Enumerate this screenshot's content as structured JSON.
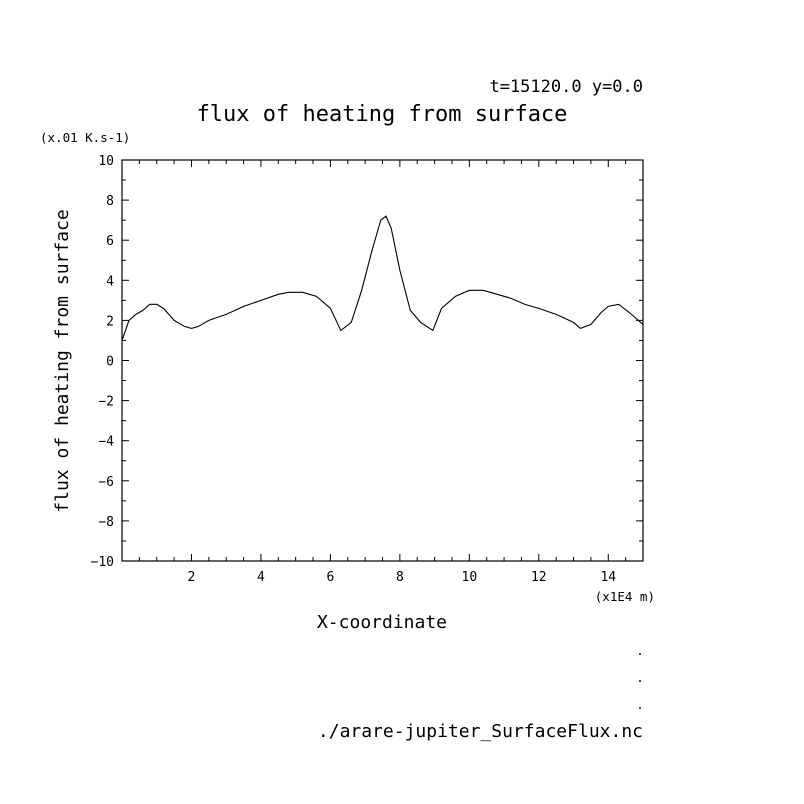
{
  "header": {
    "subtitle": "t=15120.0 y=0.0",
    "title": "flux of heating from surface",
    "y_unit": "(x.01 K.s-1)"
  },
  "footer": {
    "x_unit": "(x1E4 m)",
    "source_file": "./arare-jupiter_SurfaceFlux.nc",
    "dots": [
      ".",
      ".",
      "."
    ]
  },
  "chart_data": {
    "type": "line",
    "title": "flux of heating from surface",
    "subtitle": "t=15120.0 y=0.0",
    "xlabel": "X-coordinate",
    "ylabel": "flux of heating from surface",
    "x_unit": "(x1E4 m)",
    "y_unit": "(x.01 K.s-1)",
    "xlim": [
      0,
      15
    ],
    "ylim": [
      -10,
      10
    ],
    "x_ticks": [
      2,
      4,
      6,
      8,
      10,
      12,
      14
    ],
    "y_ticks": [
      -10,
      -8,
      -6,
      -4,
      -2,
      0,
      2,
      4,
      6,
      8,
      10
    ],
    "grid": false,
    "legend": "none",
    "series": [
      {
        "x": [
          0,
          0.2,
          0.4,
          0.6,
          0.8,
          1.0,
          1.2,
          1.5,
          1.8,
          2.0,
          2.2,
          2.5,
          3.0,
          3.5,
          4.0,
          4.5,
          4.8,
          5.2,
          5.6,
          6.0,
          6.3,
          6.6,
          6.9,
          7.2,
          7.45,
          7.6,
          7.75,
          8.0,
          8.3,
          8.6,
          8.95,
          9.2,
          9.6,
          10.0,
          10.4,
          10.8,
          11.2,
          11.6,
          12.0,
          12.5,
          13.0,
          13.2,
          13.5,
          13.8,
          14.0,
          14.3,
          14.6,
          14.8,
          15.0
        ],
        "y": [
          1.0,
          2.0,
          2.3,
          2.5,
          2.8,
          2.8,
          2.6,
          2.0,
          1.7,
          1.6,
          1.7,
          2.0,
          2.3,
          2.7,
          3.0,
          3.3,
          3.4,
          3.4,
          3.2,
          2.6,
          1.5,
          1.9,
          3.5,
          5.5,
          7.0,
          7.2,
          6.6,
          4.5,
          2.5,
          1.9,
          1.5,
          2.6,
          3.2,
          3.5,
          3.5,
          3.3,
          3.1,
          2.8,
          2.6,
          2.3,
          1.9,
          1.6,
          1.8,
          2.4,
          2.7,
          2.8,
          2.4,
          2.1,
          1.8
        ]
      }
    ]
  }
}
